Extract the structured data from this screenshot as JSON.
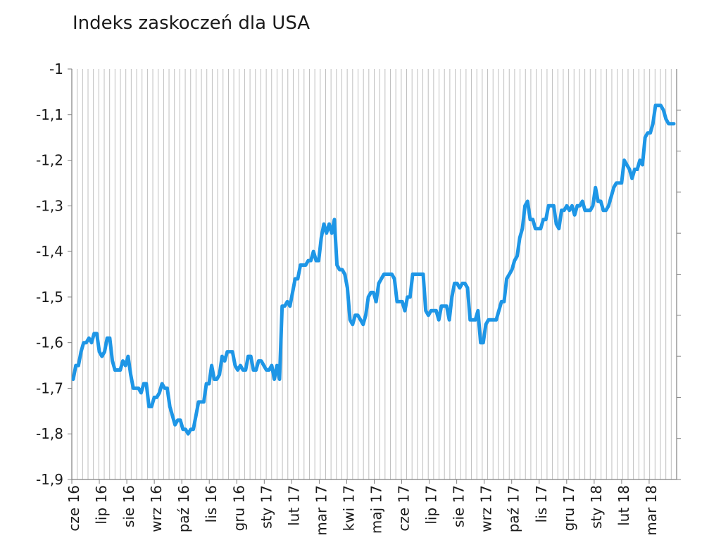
{
  "chart_data": {
    "type": "line",
    "title": "Indeks zaskoczeń dla USA",
    "xlabel": "",
    "ylabel": "",
    "ylim": [
      -1.9,
      -1.0
    ],
    "yticks": [
      -1.0,
      -1.1,
      -1.2,
      -1.3,
      -1.4,
      -1.5,
      -1.6,
      -1.7,
      -1.8,
      -1.9
    ],
    "ytick_labels": [
      "-1",
      "-1,1",
      "-1,2",
      "-1,3",
      "-1,4",
      "-1,5",
      "-1,6",
      "-1,7",
      "-1,8",
      "-1,9"
    ],
    "grid": "vertical",
    "legend": "none",
    "line_color": "#1e96e6",
    "x_month_labels": [
      "cze 16",
      "lip 16",
      "sie 16",
      "wrz 16",
      "paź 16",
      "lis 16",
      "gru 16",
      "sty 17",
      "lut 17",
      "mar 17",
      "kwi 17",
      "maj 17",
      "cze 17",
      "lip 17",
      "sie 17",
      "wrz 17",
      "paź 17",
      "lis 17",
      "gru 17",
      "sty 18",
      "lut 18",
      "mar 18"
    ],
    "series": [
      {
        "values": [
          -1.68,
          -1.65,
          -1.65,
          -1.62,
          -1.6,
          -1.6,
          -1.59,
          -1.6,
          -1.58,
          -1.58,
          -1.62,
          -1.63,
          -1.62,
          -1.59,
          -1.59,
          -1.64,
          -1.66,
          -1.66,
          -1.66,
          -1.64,
          -1.65,
          -1.63,
          -1.67,
          -1.7,
          -1.7,
          -1.7,
          -1.71,
          -1.69,
          -1.69,
          -1.74,
          -1.74,
          -1.72,
          -1.72,
          -1.71,
          -1.69,
          -1.7,
          -1.7,
          -1.74,
          -1.76,
          -1.78,
          -1.77,
          -1.77,
          -1.79,
          -1.79,
          -1.8,
          -1.79,
          -1.79,
          -1.76,
          -1.73,
          -1.73,
          -1.73,
          -1.69,
          -1.69,
          -1.65,
          -1.68,
          -1.68,
          -1.67,
          -1.63,
          -1.64,
          -1.62,
          -1.62,
          -1.62,
          -1.65,
          -1.66,
          -1.65,
          -1.66,
          -1.66,
          -1.63,
          -1.63,
          -1.66,
          -1.66,
          -1.64,
          -1.64,
          -1.65,
          -1.66,
          -1.66,
          -1.65,
          -1.68,
          -1.65,
          -1.68,
          -1.52,
          -1.52,
          -1.51,
          -1.52,
          -1.49,
          -1.46,
          -1.46,
          -1.43,
          -1.43,
          -1.43,
          -1.42,
          -1.42,
          -1.4,
          -1.42,
          -1.42,
          -1.37,
          -1.34,
          -1.36,
          -1.34,
          -1.36,
          -1.33,
          -1.43,
          -1.44,
          -1.44,
          -1.45,
          -1.48,
          -1.55,
          -1.56,
          -1.54,
          -1.54,
          -1.55,
          -1.56,
          -1.54,
          -1.5,
          -1.49,
          -1.49,
          -1.51,
          -1.47,
          -1.46,
          -1.45,
          -1.45,
          -1.45,
          -1.45,
          -1.46,
          -1.51,
          -1.51,
          -1.51,
          -1.53,
          -1.5,
          -1.5,
          -1.45,
          -1.45,
          -1.45,
          -1.45,
          -1.45,
          -1.53,
          -1.54,
          -1.53,
          -1.53,
          -1.53,
          -1.55,
          -1.52,
          -1.52,
          -1.52,
          -1.55,
          -1.5,
          -1.47,
          -1.47,
          -1.48,
          -1.47,
          -1.47,
          -1.48,
          -1.55,
          -1.55,
          -1.55,
          -1.53,
          -1.6,
          -1.6,
          -1.56,
          -1.55,
          -1.55,
          -1.55,
          -1.55,
          -1.53,
          -1.51,
          -1.51,
          -1.46,
          -1.45,
          -1.44,
          -1.42,
          -1.41,
          -1.37,
          -1.35,
          -1.3,
          -1.29,
          -1.33,
          -1.33,
          -1.35,
          -1.35,
          -1.35,
          -1.33,
          -1.33,
          -1.3,
          -1.3,
          -1.3,
          -1.34,
          -1.35,
          -1.31,
          -1.31,
          -1.3,
          -1.31,
          -1.3,
          -1.32,
          -1.3,
          -1.3,
          -1.29,
          -1.31,
          -1.31,
          -1.31,
          -1.3,
          -1.26,
          -1.29,
          -1.29,
          -1.31,
          -1.31,
          -1.3,
          -1.28,
          -1.26,
          -1.25,
          -1.25,
          -1.25,
          -1.2,
          -1.21,
          -1.22,
          -1.24,
          -1.22,
          -1.22,
          -1.2,
          -1.21,
          -1.15,
          -1.14,
          -1.14,
          -1.12,
          -1.08,
          -1.08,
          -1.08,
          -1.09,
          -1.11,
          -1.12,
          -1.12,
          -1.12
        ]
      }
    ]
  }
}
